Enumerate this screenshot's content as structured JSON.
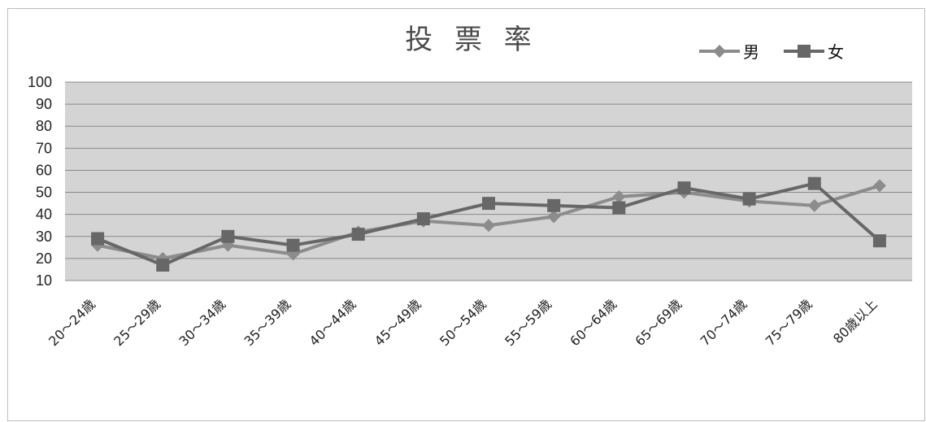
{
  "chart_data": {
    "type": "line",
    "title": "投 票 率",
    "categories": [
      "20～24歳",
      "25～29歳",
      "30～34歳",
      "35～39歳",
      "40～44歳",
      "45～49歳",
      "50～54歳",
      "55～59歳",
      "60～64歳",
      "65～69歳",
      "70～74歳",
      "75～79歳",
      "80歳以上"
    ],
    "series": [
      {
        "name": "男",
        "marker": "diamond",
        "color": "#8c8c8c",
        "values": [
          26,
          20,
          26,
          22,
          32,
          37,
          35,
          39,
          48,
          50,
          46,
          44,
          53
        ]
      },
      {
        "name": "女",
        "marker": "square",
        "color": "#676767",
        "values": [
          29,
          17,
          30,
          26,
          31,
          38,
          45,
          44,
          43,
          52,
          47,
          54,
          28
        ]
      }
    ],
    "ylim": [
      10,
      100
    ],
    "yticks": [
      10,
      20,
      30,
      40,
      50,
      60,
      70,
      80,
      90,
      100
    ],
    "grid": true,
    "legend": "top-right",
    "plot_background": "#d4d4d4",
    "grid_color": "#8a8a8a"
  }
}
